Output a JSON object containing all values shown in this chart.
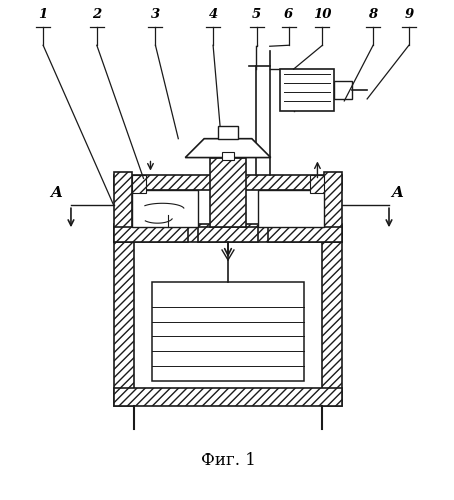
{
  "title": "Фиг. 1",
  "bg_color": "#ffffff",
  "line_color": "#1a1a1a",
  "labels_info": [
    [
      "1",
      42,
      478,
      112,
      258
    ],
    [
      "2",
      100,
      478,
      143,
      258
    ],
    [
      "3",
      160,
      478,
      178,
      258
    ],
    [
      "4",
      215,
      478,
      220,
      340
    ],
    [
      "5",
      262,
      478,
      252,
      390
    ],
    [
      "6",
      292,
      478,
      268,
      360
    ],
    [
      "10",
      325,
      478,
      295,
      340
    ],
    [
      "8",
      378,
      478,
      345,
      258
    ],
    [
      "9",
      412,
      478,
      380,
      258
    ]
  ]
}
